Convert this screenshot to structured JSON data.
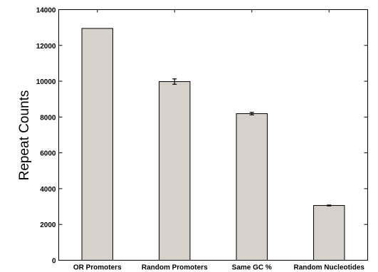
{
  "chart_data": {
    "type": "bar",
    "categories": [
      "OR Promoters",
      "Random Promoters",
      "Same GC %",
      "Random Nucleotides"
    ],
    "values": [
      12950,
      9980,
      8190,
      3060
    ],
    "errors": [
      0,
      150,
      70,
      25
    ],
    "xlabel": "",
    "ylabel": "Repeat Counts",
    "ylim": [
      0,
      14000
    ],
    "yticks": [
      0,
      2000,
      4000,
      6000,
      8000,
      10000,
      12000,
      14000
    ],
    "ytick_labels": [
      "0",
      "2000",
      "4000",
      "6000",
      "8000",
      "10000",
      "12000",
      "14000"
    ],
    "grid": false,
    "bar_color": "#d6d2cb",
    "edge_color": "#000000"
  }
}
